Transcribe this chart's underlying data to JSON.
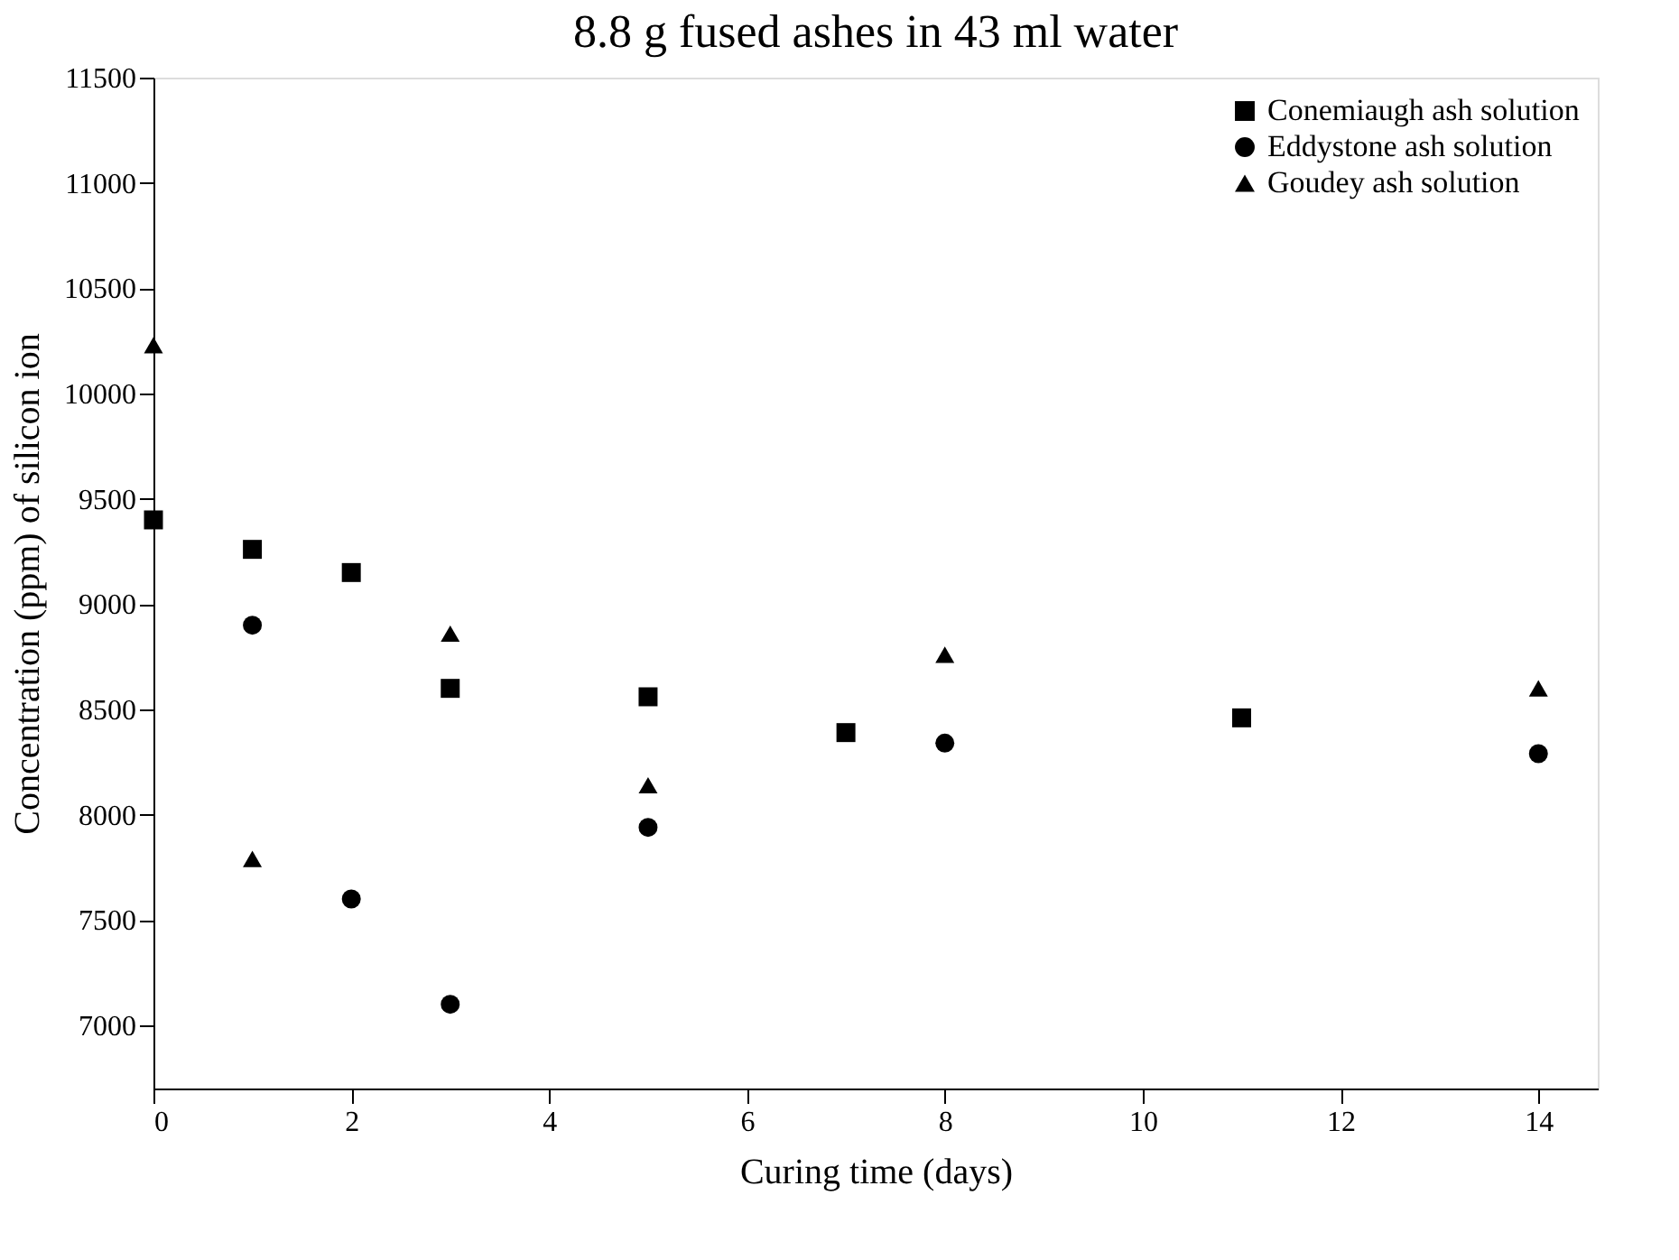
{
  "chart_data": {
    "type": "scatter",
    "title": "8.8 g fused ashes in 43 ml water",
    "xlabel": "Curing time (days)",
    "ylabel": "Concentration (ppm) of silicon ion",
    "xlim": [
      0,
      14.6
    ],
    "xticks": [
      0,
      2,
      4,
      6,
      8,
      10,
      12,
      14
    ],
    "ylim": [
      6700,
      11500
    ],
    "yticks": [
      7000,
      7500,
      8000,
      8500,
      9000,
      9500,
      10000,
      10500,
      11000,
      11500
    ],
    "grid": false,
    "legend": "top right",
    "series": [
      {
        "name": "Conemiaugh ash solution",
        "color": "#000000",
        "marker": "square",
        "x": [
          0,
          1,
          2,
          3,
          5,
          7,
          11
        ],
        "values": [
          9400,
          9260,
          9150,
          8600,
          8560,
          8390,
          8460
        ]
      },
      {
        "name": "Eddystone ash solution",
        "color": "#000000",
        "marker": "circle",
        "x": [
          1,
          2,
          3,
          5,
          8,
          14
        ],
        "values": [
          8900,
          7600,
          7100,
          7940,
          8340,
          8290
        ]
      },
      {
        "name": "Goudey ash solution",
        "color": "#000000",
        "marker": "triangle",
        "x": [
          0,
          1,
          3,
          5,
          8,
          14
        ],
        "values": [
          10230,
          7790,
          8860,
          8140,
          8760,
          8600
        ]
      }
    ]
  }
}
